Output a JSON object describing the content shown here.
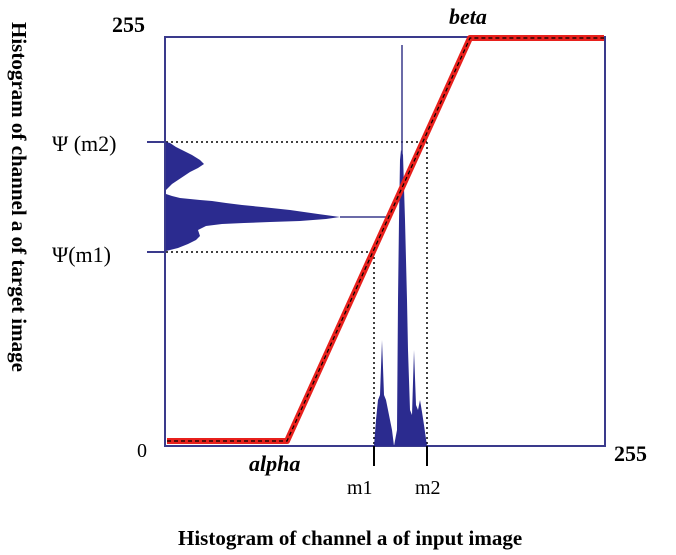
{
  "labels": {
    "y_axis_title": "Histogram of channel a of target image",
    "x_axis_title": "Histogram of channel a of input image",
    "y_max": "255",
    "y_zero": "0",
    "x_max": "255",
    "beta": "beta",
    "alpha": "alpha",
    "psi_m2": "Ψ (m2)",
    "psi_m1": "Ψ(m1)",
    "m1": "m1",
    "m2": "m2"
  },
  "colors": {
    "frame": "#3a3a8c",
    "histogram": "#2b2b8f",
    "mapping_line": "#e8201c",
    "mapping_dash": "#000000",
    "guide": "#000000"
  }
}
